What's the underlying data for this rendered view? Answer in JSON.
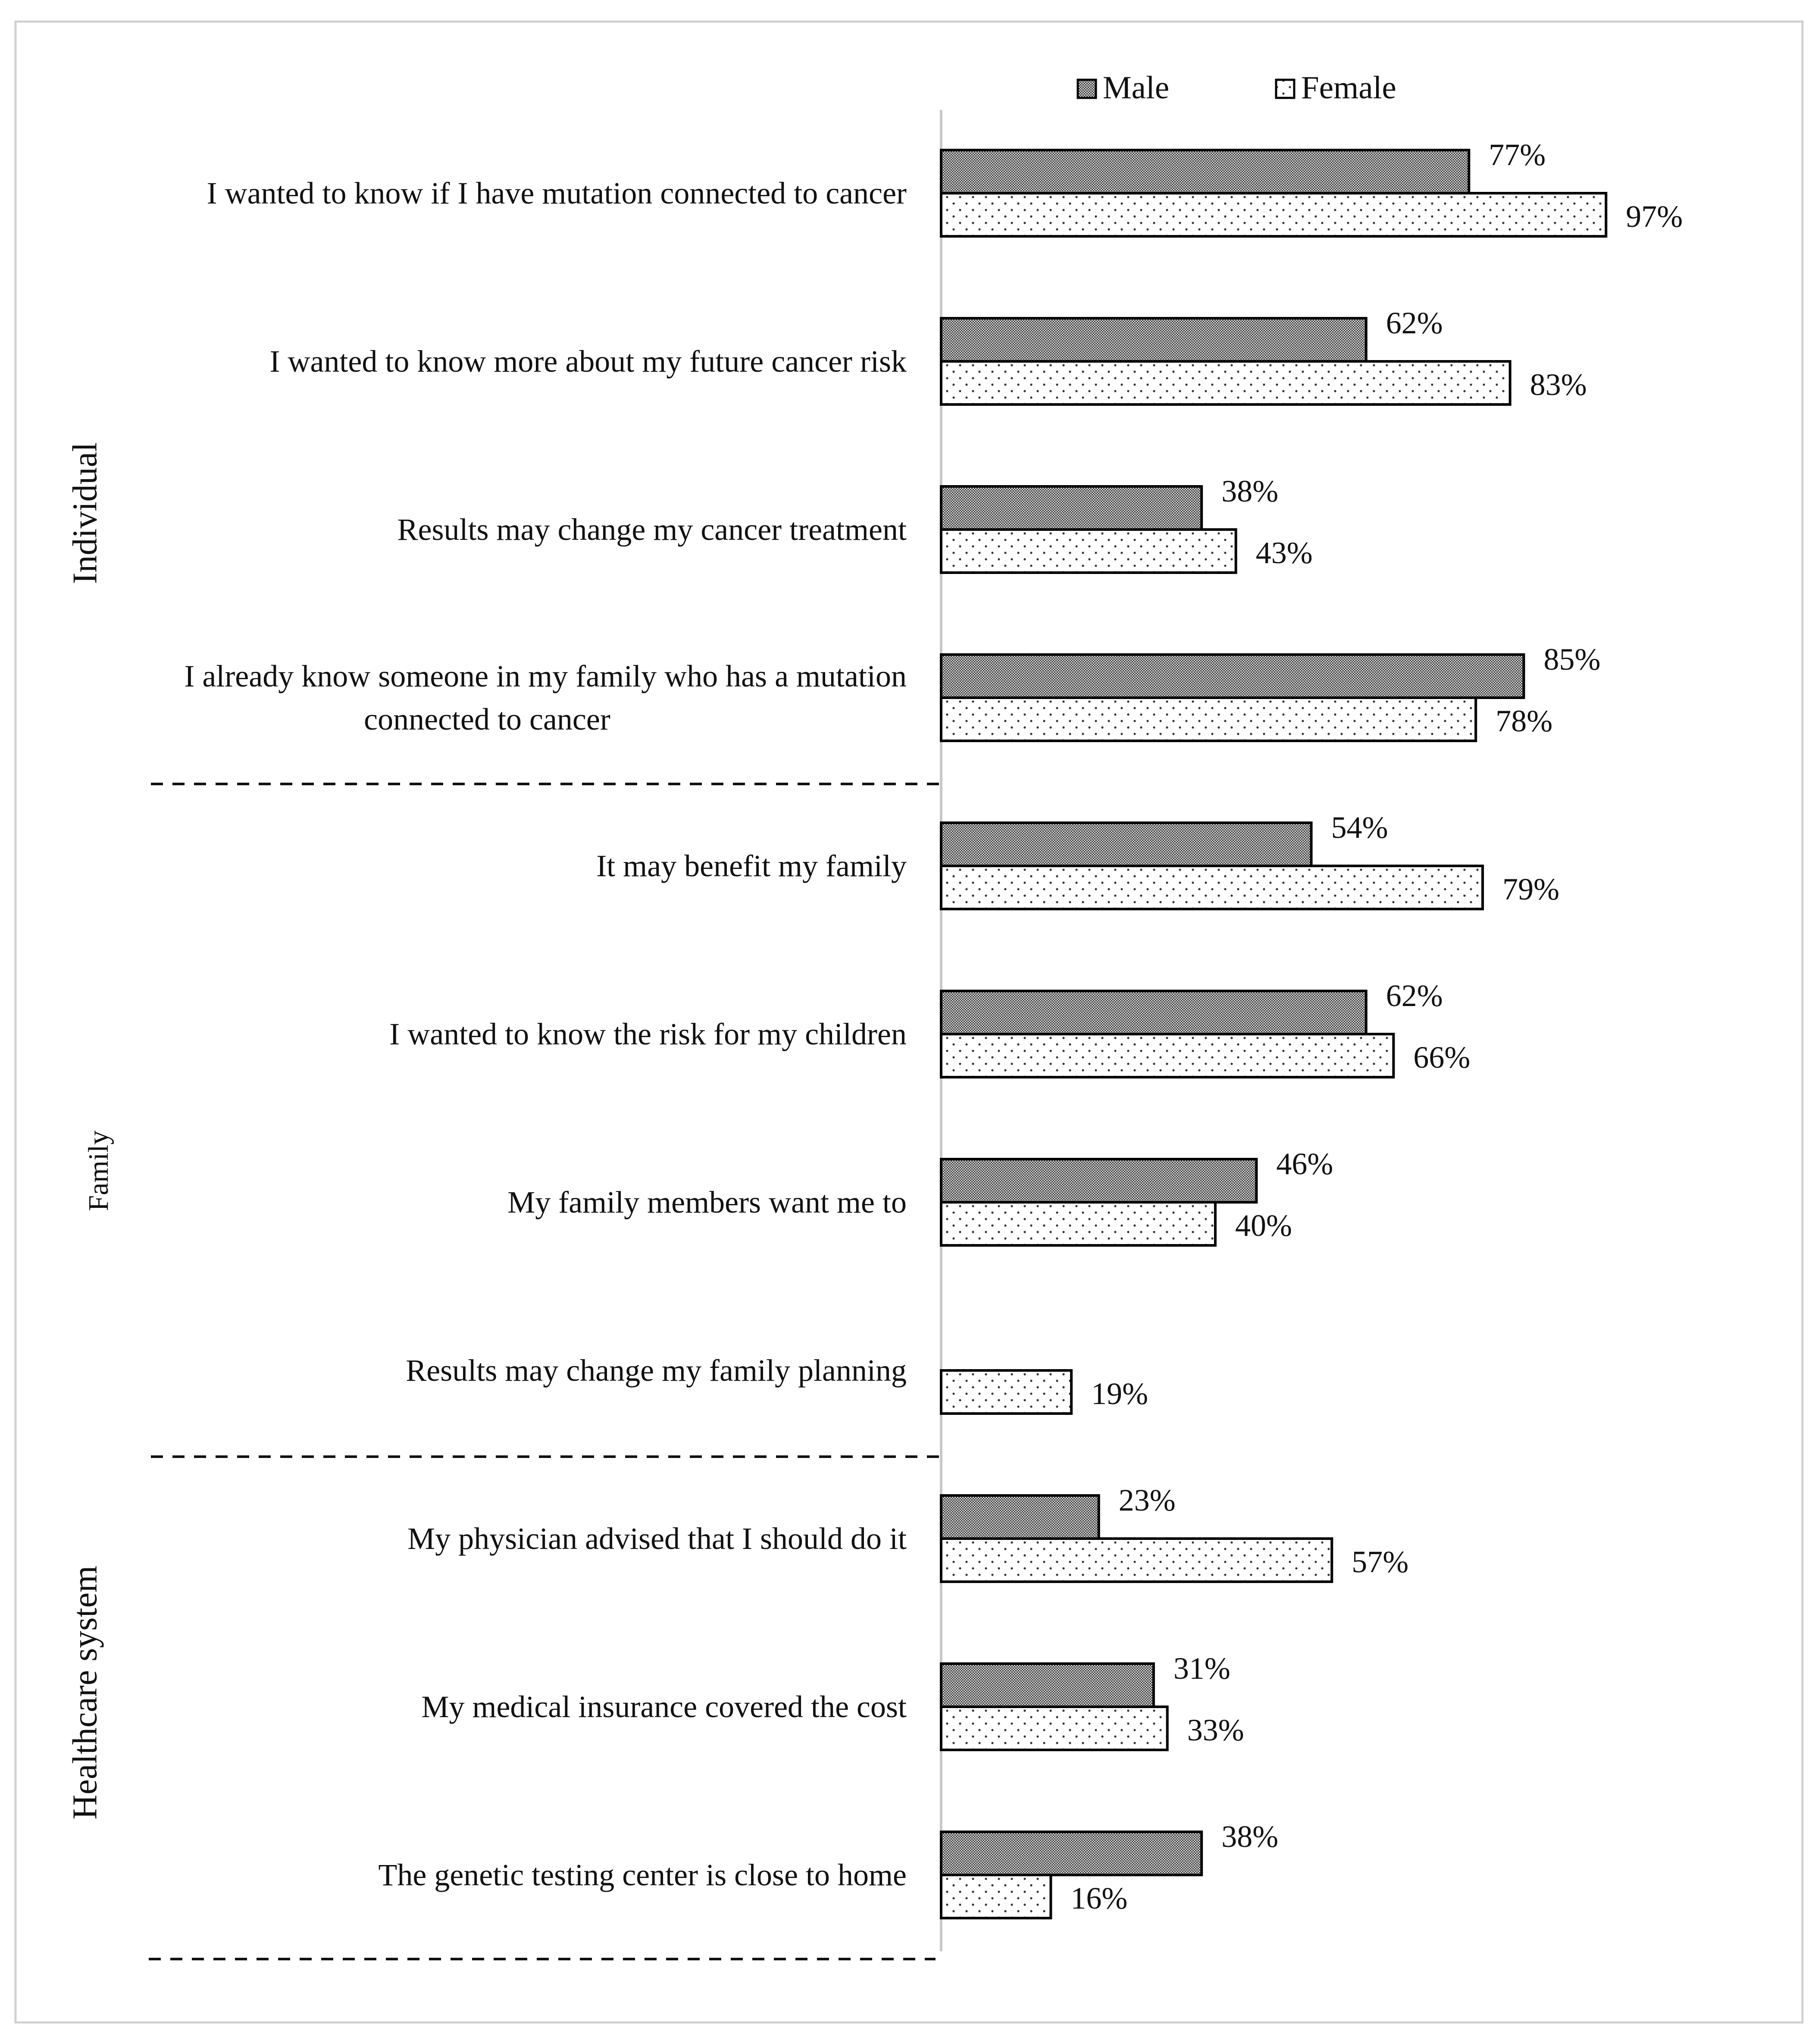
{
  "chart_data": {
    "type": "bar",
    "orientation": "horizontal",
    "title": "",
    "xlabel": "",
    "ylabel": "",
    "xlim": [
      0,
      100
    ],
    "grid": false,
    "legend_position": "top",
    "value_suffix": "%",
    "categories": [
      {
        "lines": [
          "I wanted to know if I have mutation connected to cancer"
        ],
        "group": "Individual"
      },
      {
        "lines": [
          "I wanted to know more about my future cancer risk"
        ],
        "group": "Individual"
      },
      {
        "lines": [
          "Results may change my cancer treatment"
        ],
        "group": "Individual"
      },
      {
        "lines": [
          "I already know someone in my family who has a mutation",
          "connected to cancer"
        ],
        "group": "Individual"
      },
      {
        "lines": [
          "It may benefit my family"
        ],
        "group": "Family"
      },
      {
        "lines": [
          "I wanted to know the risk for my children"
        ],
        "group": "Family"
      },
      {
        "lines": [
          "My family members want me to"
        ],
        "group": "Family"
      },
      {
        "lines": [
          "Results may change my family planning"
        ],
        "group": "Family"
      },
      {
        "lines": [
          "My physician advised that I should do it"
        ],
        "group": "Healthcare system"
      },
      {
        "lines": [
          "My medical insurance covered the cost"
        ],
        "group": "Healthcare system"
      },
      {
        "lines": [
          "The genetic testing center is close to home"
        ],
        "group": "Healthcare system"
      }
    ],
    "series": [
      {
        "name": "Male",
        "pattern": "dense-dark-checker",
        "values": [
          77,
          62,
          38,
          85,
          54,
          62,
          46,
          null,
          23,
          31,
          38
        ]
      },
      {
        "name": "Female",
        "pattern": "sparse-dots",
        "values": [
          97,
          83,
          43,
          78,
          79,
          66,
          40,
          19,
          57,
          33,
          16
        ]
      }
    ],
    "groups": [
      {
        "name": "Individual",
        "first": 0,
        "last": 3
      },
      {
        "name": "Family",
        "first": 4,
        "last": 7
      },
      {
        "name": "Healthcare system",
        "first": 8,
        "last": 10
      }
    ]
  }
}
